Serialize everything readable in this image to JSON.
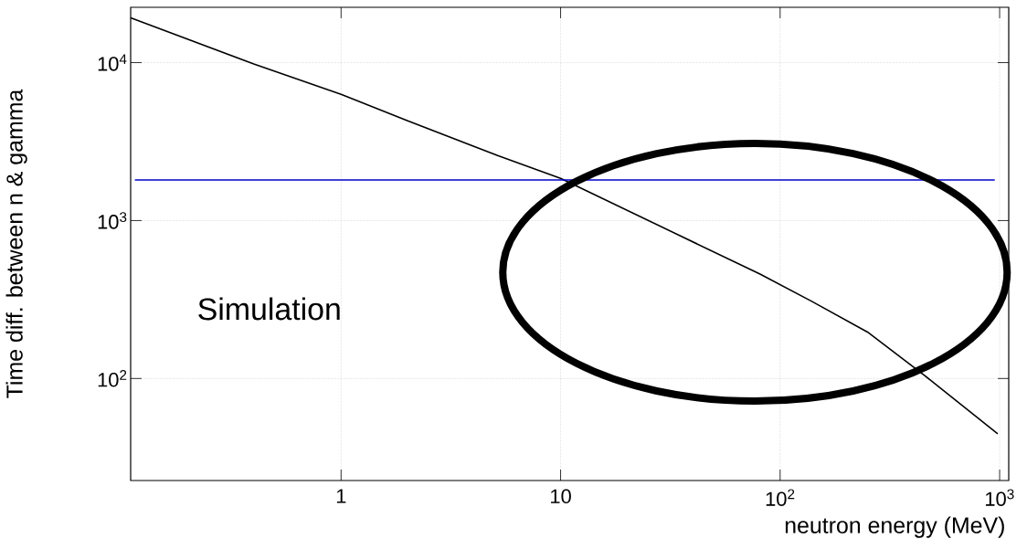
{
  "chart_data": {
    "type": "line",
    "xlabel": "neutron energy (MeV)",
    "ylabel": "Time diff. between n & gamma",
    "log": "xy",
    "grid": true,
    "marker": "none",
    "line_style": "solid",
    "xlim": [
      0.11,
      1100
    ],
    "ylim": [
      22.6,
      22400
    ],
    "xticks": [
      1,
      10,
      {
        "value": 100,
        "label": "10$^{2}$"
      },
      {
        "value": 1000,
        "label": "10$^{3}$"
      }
    ],
    "yticks": [
      {
        "value": 100,
        "label": "10$^{2}$"
      },
      {
        "value": 1000,
        "label": "10$^{3}$"
      },
      {
        "value": 10000,
        "label": "10$^{4}$"
      }
    ],
    "series": [
      {
        "color": "#000000",
        "x": [
          0.11,
          0.4,
          1,
          2,
          5.2,
          10,
          81,
          140,
          250,
          457,
          980
        ],
        "values": [
          19200,
          9800,
          6300,
          4300,
          2570,
          1850,
          458,
          307,
          197,
          104,
          44.6
        ]
      }
    ],
    "ref_lines": [
      {
        "axis": "y",
        "value": 1810,
        "color": "#0000cc"
      }
    ],
    "annotations": [
      "Simulation"
    ]
  }
}
